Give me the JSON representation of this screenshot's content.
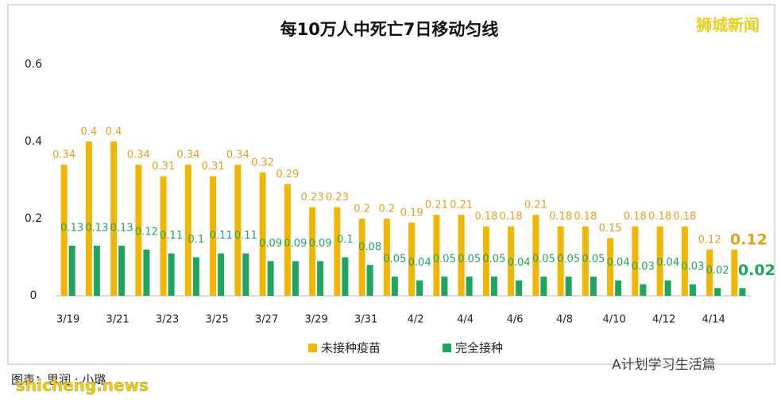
{
  "chart_data": {
    "type": "bar",
    "title": "每10万人中死亡7日移动匀线",
    "categories": [
      "3/19",
      null,
      "3/21",
      null,
      "3/23",
      null,
      "3/25",
      null,
      "3/27",
      null,
      "3/29",
      null,
      "3/31",
      null,
      "4/2",
      null,
      "4/4",
      null,
      "4/6",
      null,
      "4/8",
      null,
      "4/10",
      null,
      "4/12",
      null,
      "4/14",
      null
    ],
    "series": [
      {
        "name": "未接种疫苗",
        "color": "#f2b705",
        "values": [
          0.34,
          0.4,
          0.4,
          0.34,
          0.31,
          0.34,
          0.31,
          0.34,
          0.32,
          0.29,
          0.23,
          0.23,
          0.2,
          0.2,
          0.19,
          0.21,
          0.21,
          0.18,
          0.18,
          0.21,
          0.18,
          0.18,
          0.15,
          0.18,
          0.18,
          0.18,
          0.12,
          0.12
        ]
      },
      {
        "name": "完全接种",
        "color": "#1ea55f",
        "values": [
          0.13,
          0.13,
          0.13,
          0.12,
          0.11,
          0.1,
          0.11,
          0.11,
          0.09,
          0.09,
          0.09,
          0.1,
          0.08,
          0.05,
          0.04,
          0.05,
          0.05,
          0.05,
          0.04,
          0.05,
          0.05,
          0.05,
          0.04,
          0.03,
          0.04,
          0.03,
          0.02,
          0.02
        ]
      }
    ],
    "ylim": [
      0,
      0.6
    ],
    "yticks": [
      0,
      0.2,
      0.4,
      0.6
    ],
    "grid": false,
    "legend": "bottom",
    "annotations": [
      "狮城新闻",
      "图表：思润 · 小璐",
      "shicheng.news",
      "A计划学习生活篇"
    ]
  }
}
